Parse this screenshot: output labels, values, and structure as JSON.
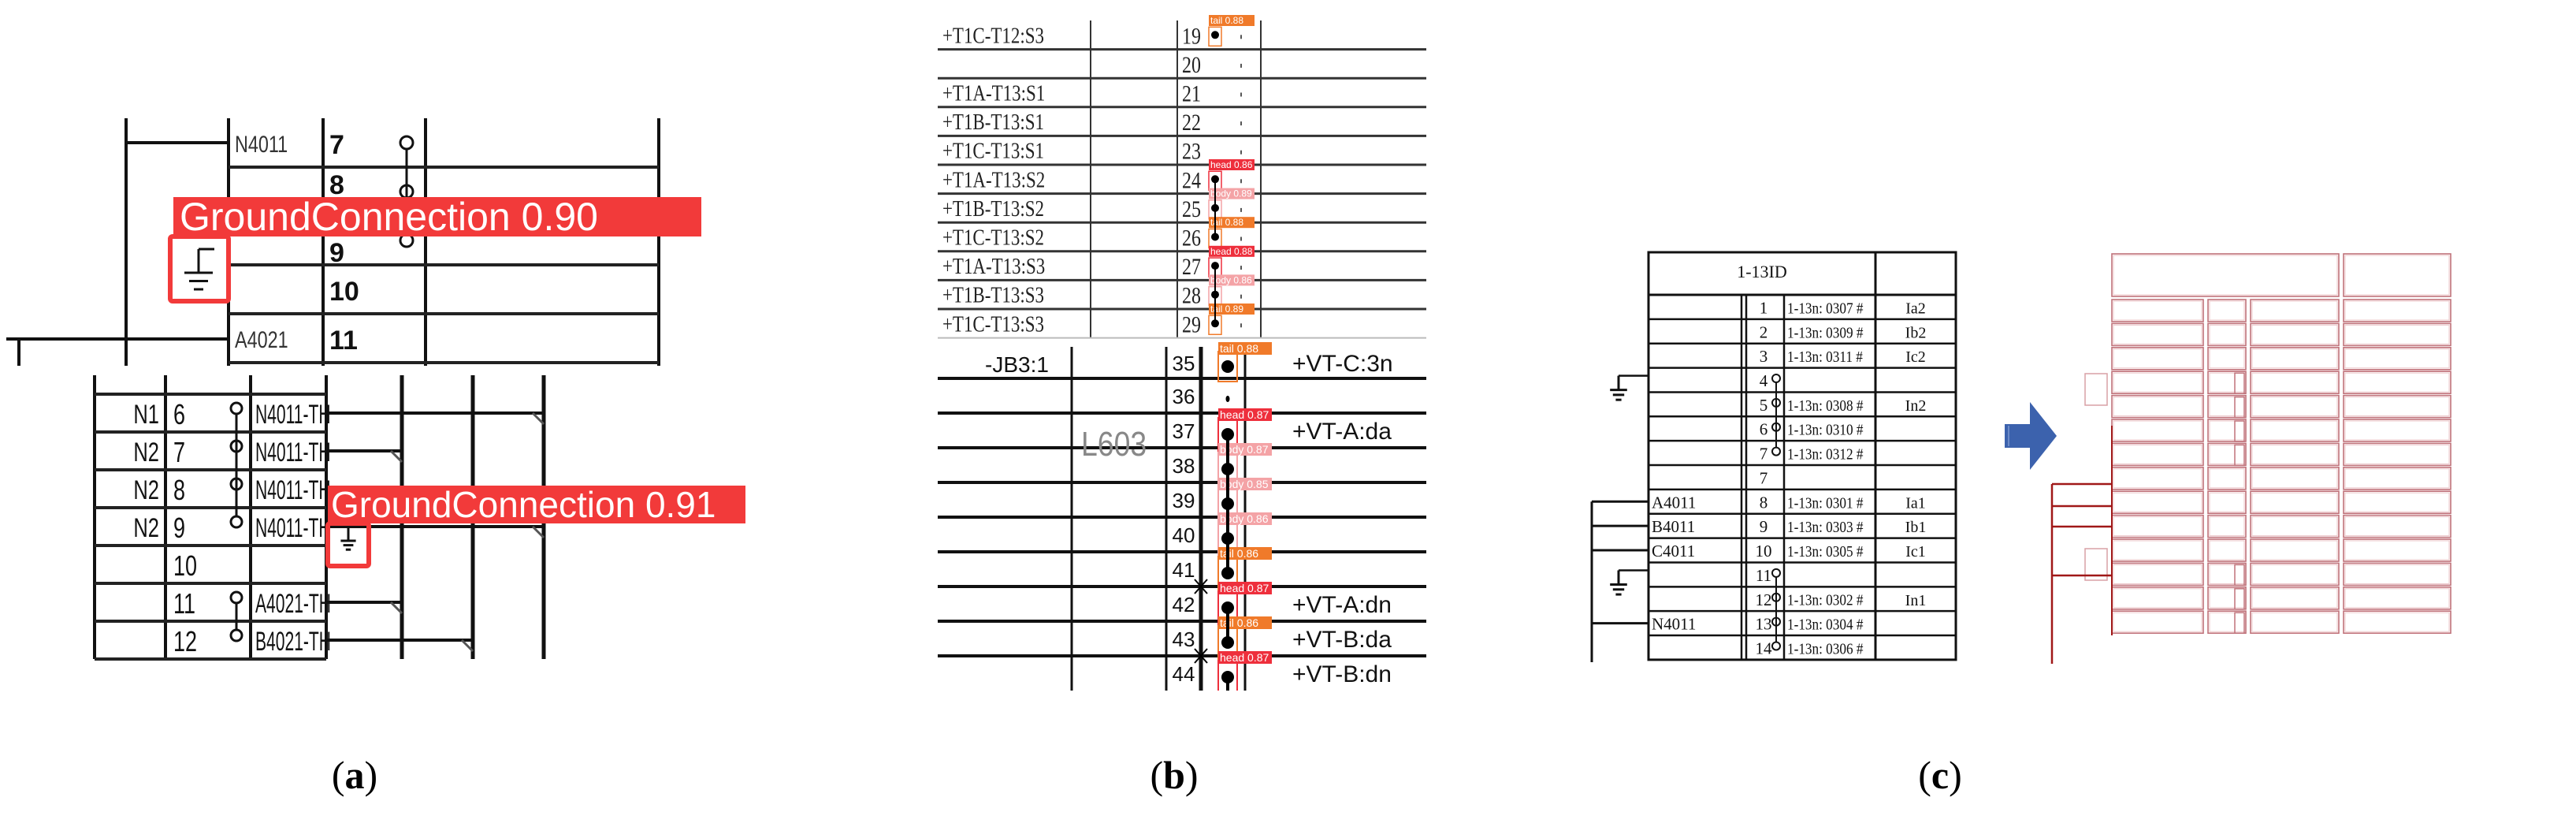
{
  "colors": {
    "ground_label": "#f23a3a",
    "head": "#ee2f3c",
    "body": "#f4a3a6",
    "tail": "#f07a2a",
    "arrow": "#3c62ad",
    "wireframe": "#c0727a",
    "wire_dark": "#a01818"
  },
  "panel_a": {
    "caption_open": "(",
    "caption_letter": "a",
    "caption_close": ")",
    "upper_rows": [
      {
        "num": "7",
        "label": "N4011",
        "link": true
      },
      {
        "num": "8",
        "label": "",
        "link": true
      },
      {
        "num": "9",
        "label": "",
        "link": true
      },
      {
        "num": "10",
        "label": "",
        "link": false
      },
      {
        "num": "11",
        "label": "A4021",
        "link": false
      }
    ],
    "lower_rows": [
      {
        "left": "N1",
        "num": "6",
        "label": "N4011-TH",
        "link": true
      },
      {
        "left": "N2",
        "num": "7",
        "label": "N4011-TH",
        "link": true
      },
      {
        "left": "N2",
        "num": "8",
        "label": "N4011-TH",
        "link": true
      },
      {
        "left": "N2",
        "num": "9",
        "label": "N4011-TH",
        "link": true
      },
      {
        "left": "",
        "num": "10",
        "label": "",
        "link": false
      },
      {
        "left": "",
        "num": "11",
        "label": "A4021-TH",
        "link": true
      },
      {
        "left": "",
        "num": "12",
        "label": "B4021-TH",
        "link": true
      }
    ],
    "detections": [
      {
        "class": "GroundConnection",
        "score": "0.90"
      },
      {
        "class": "GroundConnection",
        "score": "0.91"
      }
    ]
  },
  "panel_b": {
    "caption_open": "(",
    "caption_letter": "b",
    "caption_close": ")",
    "upper_rows": [
      {
        "label": "+T1C-T12:S3",
        "num": "19",
        "dot": true,
        "det": "tail 0.88",
        "det_type": "tail"
      },
      {
        "label": "",
        "num": "20",
        "dot": false
      },
      {
        "label": "+T1A-T13:S1",
        "num": "21",
        "dot": false
      },
      {
        "label": "+T1B-T13:S1",
        "num": "22",
        "dot": false
      },
      {
        "label": "+T1C-T13:S1",
        "num": "23",
        "dot": false
      },
      {
        "label": "+T1A-T13:S2",
        "num": "24",
        "dot": true,
        "det": "head 0.86",
        "det_type": "head"
      },
      {
        "label": "+T1B-T13:S2",
        "num": "25",
        "dot": true,
        "det": "body 0.89",
        "det_type": "body"
      },
      {
        "label": "+T1C-T13:S2",
        "num": "26",
        "dot": true,
        "det": "tail 0.88",
        "det_type": "tail"
      },
      {
        "label": "+T1A-T13:S3",
        "num": "27",
        "dot": true,
        "det": "head 0.88",
        "det_type": "head"
      },
      {
        "label": "+T1B-T13:S3",
        "num": "28",
        "dot": true,
        "det": "body 0.86",
        "det_type": "body"
      },
      {
        "label": "+T1C-T13:S3",
        "num": "29",
        "dot": true,
        "det": "tail 0.89",
        "det_type": "tail"
      }
    ],
    "lower_left_label": "-JB3:1",
    "lower_mid_label": "L603",
    "lower_rows": [
      {
        "num": "35",
        "right": "+VT-C:3n",
        "det": "tail 0.88",
        "det_type": "tail",
        "dot": true
      },
      {
        "num": "36",
        "right": "",
        "dot": false
      },
      {
        "num": "37",
        "right": "+VT-A:da",
        "det": "head 0.87",
        "det_type": "head",
        "dot": true
      },
      {
        "num": "38",
        "right": "",
        "det": "body 0.87",
        "det_type": "body",
        "dot": true
      },
      {
        "num": "39",
        "right": "",
        "det": "body 0.85",
        "det_type": "body",
        "dot": true
      },
      {
        "num": "40",
        "right": "",
        "det": "body 0.86",
        "det_type": "body",
        "dot": true
      },
      {
        "num": "41",
        "right": "",
        "det": "tail 0.86",
        "det_type": "tail",
        "dot": true
      },
      {
        "num": "42",
        "right": "+VT-A:dn",
        "det": "head 0.87",
        "det_type": "head",
        "dot": true
      },
      {
        "num": "43",
        "right": "+VT-B:da",
        "det": "tail 0.86",
        "det_type": "tail",
        "dot": true
      },
      {
        "num": "44",
        "right": "+VT-B:dn",
        "det": "head 0.87",
        "det_type": "head",
        "dot": true
      }
    ]
  },
  "panel_c": {
    "caption_open": "(",
    "caption_letter": "c",
    "caption_close": ")",
    "header": "1-13ID",
    "rows": [
      {
        "left": "",
        "num": "1",
        "code": "1-13n: 0307  #",
        "signal": "Ia2",
        "link": false
      },
      {
        "left": "",
        "num": "2",
        "code": "1-13n: 0309  #",
        "signal": "Ib2",
        "link": false
      },
      {
        "left": "",
        "num": "3",
        "code": "1-13n: 0311  #",
        "signal": "Ic2",
        "link": false
      },
      {
        "left": "",
        "num": "4",
        "code": "",
        "signal": "",
        "link": true
      },
      {
        "left": "",
        "num": "5",
        "code": "1-13n: 0308  #",
        "signal": "In2",
        "link": true
      },
      {
        "left": "",
        "num": "6",
        "code": "1-13n: 0310  #",
        "signal": "",
        "link": true
      },
      {
        "left": "",
        "num": "7",
        "code": "1-13n: 0312  #",
        "signal": "",
        "link": true
      },
      {
        "left": "",
        "num": "7",
        "code": "",
        "signal": "",
        "link": false
      },
      {
        "left": "A4011",
        "num": "8",
        "code": "1-13n: 0301  #",
        "signal": "Ia1",
        "link": false
      },
      {
        "left": "B4011",
        "num": "9",
        "code": "1-13n: 0303  #",
        "signal": "Ib1",
        "link": false
      },
      {
        "left": "C4011",
        "num": "10",
        "code": "1-13n: 0305  #",
        "signal": "Ic1",
        "link": false
      },
      {
        "left": "",
        "num": "11",
        "code": "",
        "signal": "",
        "link": true
      },
      {
        "left": "",
        "num": "12",
        "code": "1-13n: 0302  #",
        "signal": "In1",
        "link": true
      },
      {
        "left": "N4011",
        "num": "13",
        "code": "1-13n: 0304  #",
        "signal": "",
        "link": true
      },
      {
        "left": "",
        "num": "14",
        "code": "1-13n: 0306  #",
        "signal": "",
        "link": true
      }
    ],
    "arrow_icon": "right-arrow"
  }
}
